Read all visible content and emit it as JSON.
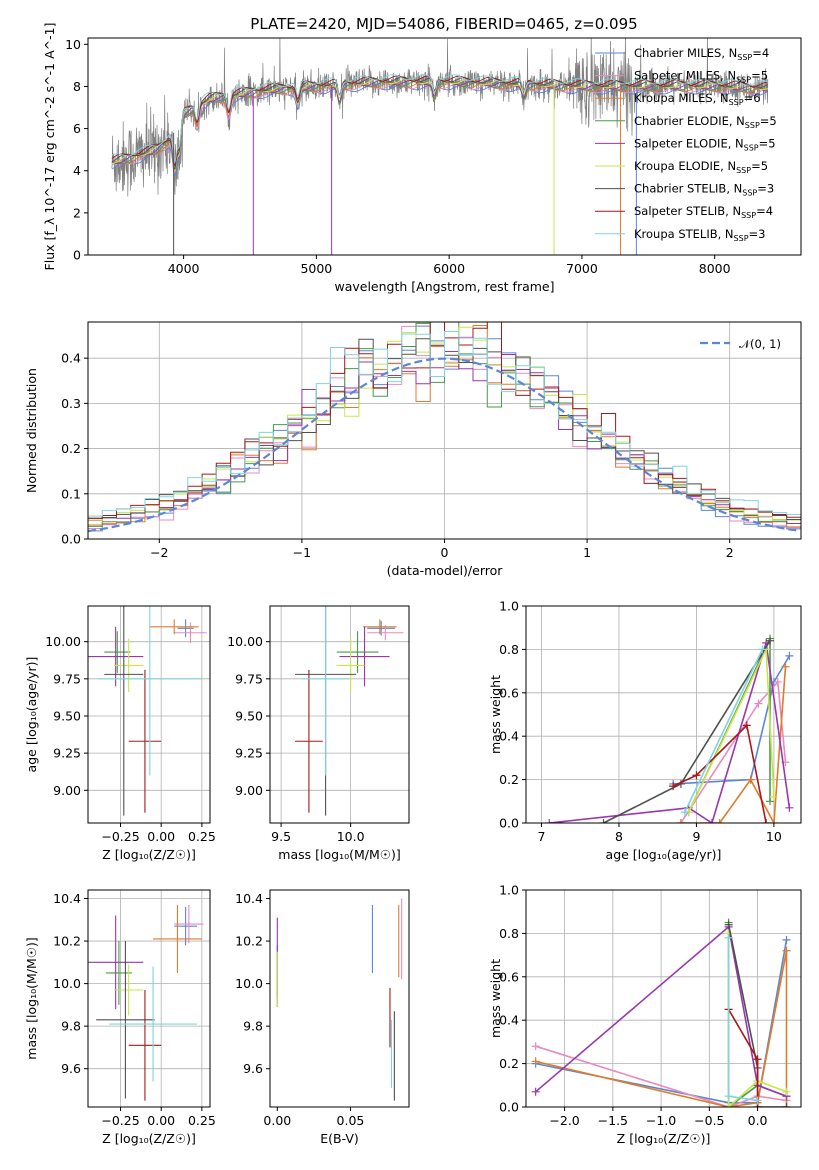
{
  "figure_title": "PLATE=2420, MJD=54086, FIBERID=0465, z=0.095",
  "colors": {
    "Chabrier MILES": "#5b86d6",
    "Salpeter MILES": "#e88ac0",
    "Kroupa MILES": "#e07b2a",
    "Chabrier ELODIE": "#4a9a4a",
    "Salpeter ELODIE": "#9b35b0",
    "Kroupa ELODIE": "#c8e64a",
    "Chabrier STELIB": "#505050",
    "Salpeter STELIB": "#a81818",
    "Kroupa STELIB": "#7fd4df"
  },
  "chart_data": [
    {
      "id": "spectrum",
      "type": "line",
      "title": "PLATE=2420, MJD=54086, FIBERID=0465, z=0.095",
      "xlabel": "wavelength [Angstrom, rest frame]",
      "ylabel": "Flux [f_λ 10^-17 erg cm^-2 s^-1 A^-1]",
      "xlim": [
        3280,
        8650
      ],
      "ylim": [
        0,
        10.3
      ],
      "xticks": [
        "4000",
        "5000",
        "6000",
        "7000",
        "8000"
      ],
      "yticks": [
        "0",
        "2",
        "4",
        "6",
        "8",
        "10"
      ],
      "grid": false,
      "legend_position": "right",
      "legend": [
        {
          "name": "Chabrier MILES",
          "n": "4"
        },
        {
          "name": "Salpeter MILES",
          "n": "5"
        },
        {
          "name": "Kroupa MILES",
          "n": "6"
        },
        {
          "name": "Chabrier ELODIE",
          "n": "5"
        },
        {
          "name": "Salpeter ELODIE",
          "n": "5"
        },
        {
          "name": "Kroupa ELODIE",
          "n": "5"
        },
        {
          "name": "Chabrier STELIB",
          "n": "3"
        },
        {
          "name": "Salpeter STELIB",
          "n": "4"
        },
        {
          "name": "Kroupa STELIB",
          "n": "3"
        }
      ],
      "data_color": "#808080",
      "continuum": [
        {
          "x": 3460,
          "y": 4.4
        },
        {
          "x": 3600,
          "y": 4.6
        },
        {
          "x": 3700,
          "y": 4.8
        },
        {
          "x": 3800,
          "y": 5.0
        },
        {
          "x": 3900,
          "y": 5.5
        },
        {
          "x": 4000,
          "y": 6.7
        },
        {
          "x": 4200,
          "y": 7.4
        },
        {
          "x": 4400,
          "y": 7.6
        },
        {
          "x": 4600,
          "y": 7.8
        },
        {
          "x": 5000,
          "y": 8.0
        },
        {
          "x": 5500,
          "y": 8.2
        },
        {
          "x": 6000,
          "y": 8.2
        },
        {
          "x": 6500,
          "y": 8.1
        },
        {
          "x": 7000,
          "y": 8.0
        },
        {
          "x": 7500,
          "y": 8.0
        },
        {
          "x": 8000,
          "y": 8.0
        },
        {
          "x": 8400,
          "y": 7.9
        }
      ]
    },
    {
      "id": "residuals",
      "type": "histogram",
      "xlabel": "(data-model)/error",
      "ylabel": "Normed distribution",
      "xlim": [
        -2.5,
        2.5
      ],
      "ylim": [
        0,
        0.48
      ],
      "xticks": [
        "−2",
        "−1",
        "0",
        "1",
        "2"
      ],
      "yticks": [
        "0.0",
        "0.1",
        "0.2",
        "0.3",
        "0.4"
      ],
      "grid": true,
      "legend_position": "top-right",
      "reference_curve": {
        "name": "𝒩(0, 1)",
        "mean": 0,
        "sigma": 1,
        "color": "#5b86d6"
      }
    },
    {
      "id": "age-vs-Z",
      "type": "scatter",
      "xlabel": "Z [log₁₀(Z/Z☉)]",
      "ylabel": "age  [log₁₀(age/yr)]",
      "xlim": [
        -0.45,
        0.3
      ],
      "ylim": [
        8.78,
        10.24
      ],
      "xticks": [
        "−0.25",
        "0.00",
        "0.25"
      ],
      "yticks": [
        "9.00",
        "9.25",
        "9.50",
        "9.75",
        "10.00"
      ],
      "grid": true,
      "points": [
        {
          "series": "Chabrier MILES",
          "x": 0.15,
          "y": 10.09,
          "xerr": 0.05,
          "yerr": 0.06
        },
        {
          "series": "Salpeter MILES",
          "x": 0.18,
          "y": 10.06,
          "xerr": 0.1,
          "yerr": 0.07
        },
        {
          "series": "Kroupa MILES",
          "x": 0.08,
          "y": 10.1,
          "xerr": 0.15,
          "yerr": 0.05
        },
        {
          "series": "Chabrier ELODIE",
          "x": -0.27,
          "y": 9.93,
          "xerr": 0.08,
          "yerr": 0.14
        },
        {
          "series": "Salpeter ELODIE",
          "x": -0.28,
          "y": 9.9,
          "xerr": 0.17,
          "yerr": 0.2
        },
        {
          "series": "Kroupa ELODIE",
          "x": -0.2,
          "y": 9.84,
          "xerr": 0.09,
          "yerr": 0.18
        },
        {
          "series": "Chabrier STELIB",
          "x": -0.23,
          "y": 9.78,
          "xerr": 0.12,
          "yerr": 0.95
        },
        {
          "series": "Salpeter STELIB",
          "x": -0.1,
          "y": 9.33,
          "xerr": 0.1,
          "yerr": 0.48
        },
        {
          "series": "Kroupa STELIB",
          "x": -0.07,
          "y": 9.75,
          "xerr": 0.32,
          "yerr": 0.65
        }
      ]
    },
    {
      "id": "age-vs-mass",
      "type": "scatter",
      "xlabel": "mass [log₁₀(M/M☉)]",
      "ylabel": "",
      "xlim": [
        9.42,
        10.42
      ],
      "ylim": [
        8.78,
        10.24
      ],
      "xticks": [
        "9.5",
        "10.0"
      ],
      "yticks": [
        "9.00",
        "9.25",
        "9.50",
        "9.75",
        "10.00"
      ],
      "grid": true,
      "points": [
        {
          "series": "Chabrier MILES",
          "x": 10.22,
          "y": 10.09,
          "xerr": 0.1,
          "yerr": 0.05
        },
        {
          "series": "Salpeter MILES",
          "x": 10.25,
          "y": 10.06,
          "xerr": 0.13,
          "yerr": 0.05
        },
        {
          "series": "Kroupa MILES",
          "x": 10.21,
          "y": 10.1,
          "xerr": 0.12,
          "yerr": 0.05
        },
        {
          "series": "Chabrier ELODIE",
          "x": 10.05,
          "y": 9.93,
          "xerr": 0.15,
          "yerr": 0.14
        },
        {
          "series": "Salpeter ELODIE",
          "x": 10.1,
          "y": 9.9,
          "xerr": 0.18,
          "yerr": 0.2
        },
        {
          "series": "Kroupa ELODIE",
          "x": 10.0,
          "y": 9.84,
          "xerr": 0.1,
          "yerr": 0.18
        },
        {
          "series": "Chabrier STELIB",
          "x": 9.82,
          "y": 9.78,
          "xerr": 0.22,
          "yerr": 0.95
        },
        {
          "series": "Salpeter STELIB",
          "x": 9.7,
          "y": 9.33,
          "xerr": 0.1,
          "yerr": 0.48
        },
        {
          "series": "Kroupa STELIB",
          "x": 9.82,
          "y": 9.75,
          "xerr": 0.17,
          "yerr": 0.65
        }
      ]
    },
    {
      "id": "massweight-vs-age",
      "type": "line",
      "xlabel": "age  [log₁₀(age/yr)]",
      "ylabel": "mass weight",
      "xlim": [
        6.8,
        10.35
      ],
      "ylim": [
        0,
        1.0
      ],
      "xticks": [
        "7",
        "8",
        "9",
        "10"
      ],
      "yticks": [
        "0.0",
        "0.2",
        "0.4",
        "0.6",
        "0.8",
        "1.0"
      ],
      "grid": true,
      "series": [
        {
          "name": "Chabrier MILES",
          "points": [
            [
              8.7,
              0.18
            ],
            [
              9.7,
              0.2
            ],
            [
              10.0,
              0.65
            ],
            [
              10.2,
              0.77
            ]
          ]
        },
        {
          "name": "Salpeter MILES",
          "points": [
            [
              8.8,
              0.0
            ],
            [
              9.8,
              0.55
            ],
            [
              10.05,
              0.65
            ],
            [
              10.15,
              0.28
            ]
          ]
        },
        {
          "name": "Kroupa MILES",
          "points": [
            [
              8.8,
              0.0
            ],
            [
              9.3,
              0.0
            ],
            [
              9.7,
              0.2
            ],
            [
              10.0,
              0.0
            ],
            [
              10.15,
              0.72
            ]
          ]
        },
        {
          "name": "Chabrier ELODIE",
          "points": [
            [
              8.9,
              0.05
            ],
            [
              9.95,
              0.85
            ],
            [
              9.95,
              0.1
            ]
          ]
        },
        {
          "name": "Salpeter ELODIE",
          "points": [
            [
              7.1,
              0.0
            ],
            [
              8.9,
              0.07
            ],
            [
              9.2,
              0.0
            ],
            [
              9.9,
              0.83
            ],
            [
              10.2,
              0.07
            ]
          ]
        },
        {
          "name": "Kroupa ELODIE",
          "points": [
            [
              8.9,
              0.05
            ],
            [
              9.9,
              0.8
            ],
            [
              10.0,
              0.12
            ]
          ]
        },
        {
          "name": "Chabrier STELIB",
          "points": [
            [
              7.8,
              0.0
            ],
            [
              8.8,
              0.18
            ],
            [
              9.95,
              0.84
            ]
          ]
        },
        {
          "name": "Salpeter STELIB",
          "points": [
            [
              8.7,
              0.17
            ],
            [
              9.0,
              0.22
            ],
            [
              9.65,
              0.45
            ],
            [
              9.9,
              0.0
            ]
          ]
        },
        {
          "name": "Kroupa STELIB",
          "points": [
            [
              8.85,
              0.05
            ],
            [
              9.85,
              0.8
            ]
          ]
        }
      ]
    },
    {
      "id": "mass-vs-Z",
      "type": "scatter",
      "xlabel": "Z [log₁₀(Z/Z☉)]",
      "ylabel": "mass [log₁₀(M/M☉)]",
      "xlim": [
        -0.45,
        0.3
      ],
      "ylim": [
        9.42,
        10.44
      ],
      "xticks": [
        "−0.25",
        "0.00",
        "0.25"
      ],
      "yticks": [
        "9.6",
        "9.8",
        "10.0",
        "10.2",
        "10.4"
      ],
      "grid": true,
      "points": [
        {
          "series": "Chabrier MILES",
          "x": 0.15,
          "y": 10.27,
          "xerr": 0.07,
          "yerr": 0.09
        },
        {
          "series": "Salpeter MILES",
          "x": 0.17,
          "y": 10.28,
          "xerr": 0.09,
          "yerr": 0.09
        },
        {
          "series": "Kroupa MILES",
          "x": 0.1,
          "y": 10.21,
          "xerr": 0.15,
          "yerr": 0.16
        },
        {
          "series": "Chabrier ELODIE",
          "x": -0.26,
          "y": 10.05,
          "xerr": 0.08,
          "yerr": 0.15
        },
        {
          "series": "Salpeter ELODIE",
          "x": -0.28,
          "y": 10.1,
          "xerr": 0.17,
          "yerr": 0.22
        },
        {
          "series": "Kroupa ELODIE",
          "x": -0.2,
          "y": 9.97,
          "xerr": 0.09,
          "yerr": 0.12
        },
        {
          "series": "Chabrier STELIB",
          "x": -0.22,
          "y": 9.83,
          "xerr": 0.18,
          "yerr": 0.37
        },
        {
          "series": "Salpeter STELIB",
          "x": -0.1,
          "y": 9.71,
          "xerr": 0.1,
          "yerr": 0.26
        },
        {
          "series": "Kroupa STELIB",
          "x": -0.05,
          "y": 9.81,
          "xerr": 0.27,
          "yerr": 0.27
        }
      ]
    },
    {
      "id": "mass-vs-EBV",
      "type": "scatter",
      "xlabel": "E(B-V)",
      "ylabel": "",
      "xlim": [
        -0.005,
        0.09
      ],
      "ylim": [
        9.42,
        10.44
      ],
      "xticks": [
        "0.00",
        "0.05"
      ],
      "yticks": [
        "9.6",
        "9.8",
        "10.0",
        "10.2",
        "10.4"
      ],
      "grid": false,
      "points": [
        {
          "series": "Chabrier MILES",
          "x": 0.065,
          "y": 10.21,
          "xerr": 0,
          "yerr": 0.16
        },
        {
          "series": "Salpeter MILES",
          "x": 0.085,
          "y": 10.21,
          "xerr": 0,
          "yerr": 0.19
        },
        {
          "series": "Kroupa MILES",
          "x": 0.083,
          "y": 10.2,
          "xerr": 0,
          "yerr": 0.17
        },
        {
          "series": "Chabrier ELODIE",
          "x": 0.0,
          "y": 10.06,
          "xerr": 0,
          "yerr": 0.12
        },
        {
          "series": "Salpeter ELODIE",
          "x": 0.0,
          "y": 10.1,
          "xerr": 0,
          "yerr": 0.21
        },
        {
          "series": "Kroupa ELODIE",
          "x": 0.0,
          "y": 10.02,
          "xerr": 0,
          "yerr": 0.13
        },
        {
          "series": "Chabrier STELIB",
          "x": 0.08,
          "y": 9.66,
          "xerr": 0,
          "yerr": 0.21
        },
        {
          "series": "Salpeter STELIB",
          "x": 0.077,
          "y": 9.84,
          "xerr": 0,
          "yerr": 0.14
        },
        {
          "series": "Kroupa STELIB",
          "x": 0.078,
          "y": 9.67,
          "xerr": 0,
          "yerr": 0.16
        }
      ]
    },
    {
      "id": "massweight-vs-Z",
      "type": "line",
      "xlabel": "Z [log₁₀(Z/Z☉)]",
      "ylabel": "mass weight",
      "xlim": [
        -2.4,
        0.45
      ],
      "ylim": [
        0,
        1.0
      ],
      "xticks": [
        "−2.0",
        "−1.5",
        "−1.0",
        "−0.5",
        "0.0"
      ],
      "yticks": [
        "0.0",
        "0.2",
        "0.4",
        "0.6",
        "0.8",
        "1.0"
      ],
      "grid": true,
      "series": [
        {
          "name": "Chabrier MILES",
          "points": [
            [
              -2.3,
              0.2
            ],
            [
              -0.3,
              0.02
            ],
            [
              0.0,
              0.02
            ],
            [
              0.3,
              0.77
            ]
          ]
        },
        {
          "name": "Salpeter MILES",
          "points": [
            [
              -2.3,
              0.28
            ],
            [
              -0.3,
              0.0
            ],
            [
              0.0,
              0.05
            ],
            [
              0.3,
              0.03
            ]
          ]
        },
        {
          "name": "Kroupa MILES",
          "points": [
            [
              -2.3,
              0.21
            ],
            [
              -0.3,
              0.0
            ],
            [
              0.0,
              0.02
            ],
            [
              0.3,
              0.72
            ],
            [
              0.3,
              0.0
            ]
          ]
        },
        {
          "name": "Chabrier ELODIE",
          "points": [
            [
              -0.3,
              0.85
            ],
            [
              -0.3,
              0.0
            ],
            [
              0.0,
              0.1
            ],
            [
              0.3,
              0.05
            ]
          ]
        },
        {
          "name": "Salpeter ELODIE",
          "points": [
            [
              -2.3,
              0.07
            ],
            [
              -0.3,
              0.83
            ],
            [
              0.0,
              0.1
            ],
            [
              0.3,
              0.05
            ]
          ]
        },
        {
          "name": "Kroupa ELODIE",
          "points": [
            [
              -0.3,
              0.8
            ],
            [
              -0.3,
              0.0
            ],
            [
              0.0,
              0.12
            ],
            [
              0.3,
              0.07
            ]
          ]
        },
        {
          "name": "Chabrier STELIB",
          "points": [
            [
              -0.3,
              0.84
            ],
            [
              0.0,
              0.18
            ],
            [
              0.0,
              0.0
            ],
            [
              0.3,
              0.0
            ]
          ]
        },
        {
          "name": "Salpeter STELIB",
          "points": [
            [
              -0.3,
              0.45
            ],
            [
              0.0,
              0.22
            ],
            [
              0.0,
              0.0
            ]
          ]
        },
        {
          "name": "Kroupa STELIB",
          "points": [
            [
              -0.3,
              0.78
            ],
            [
              -0.3,
              0.05
            ],
            [
              0.0,
              0.03
            ]
          ]
        }
      ]
    }
  ]
}
